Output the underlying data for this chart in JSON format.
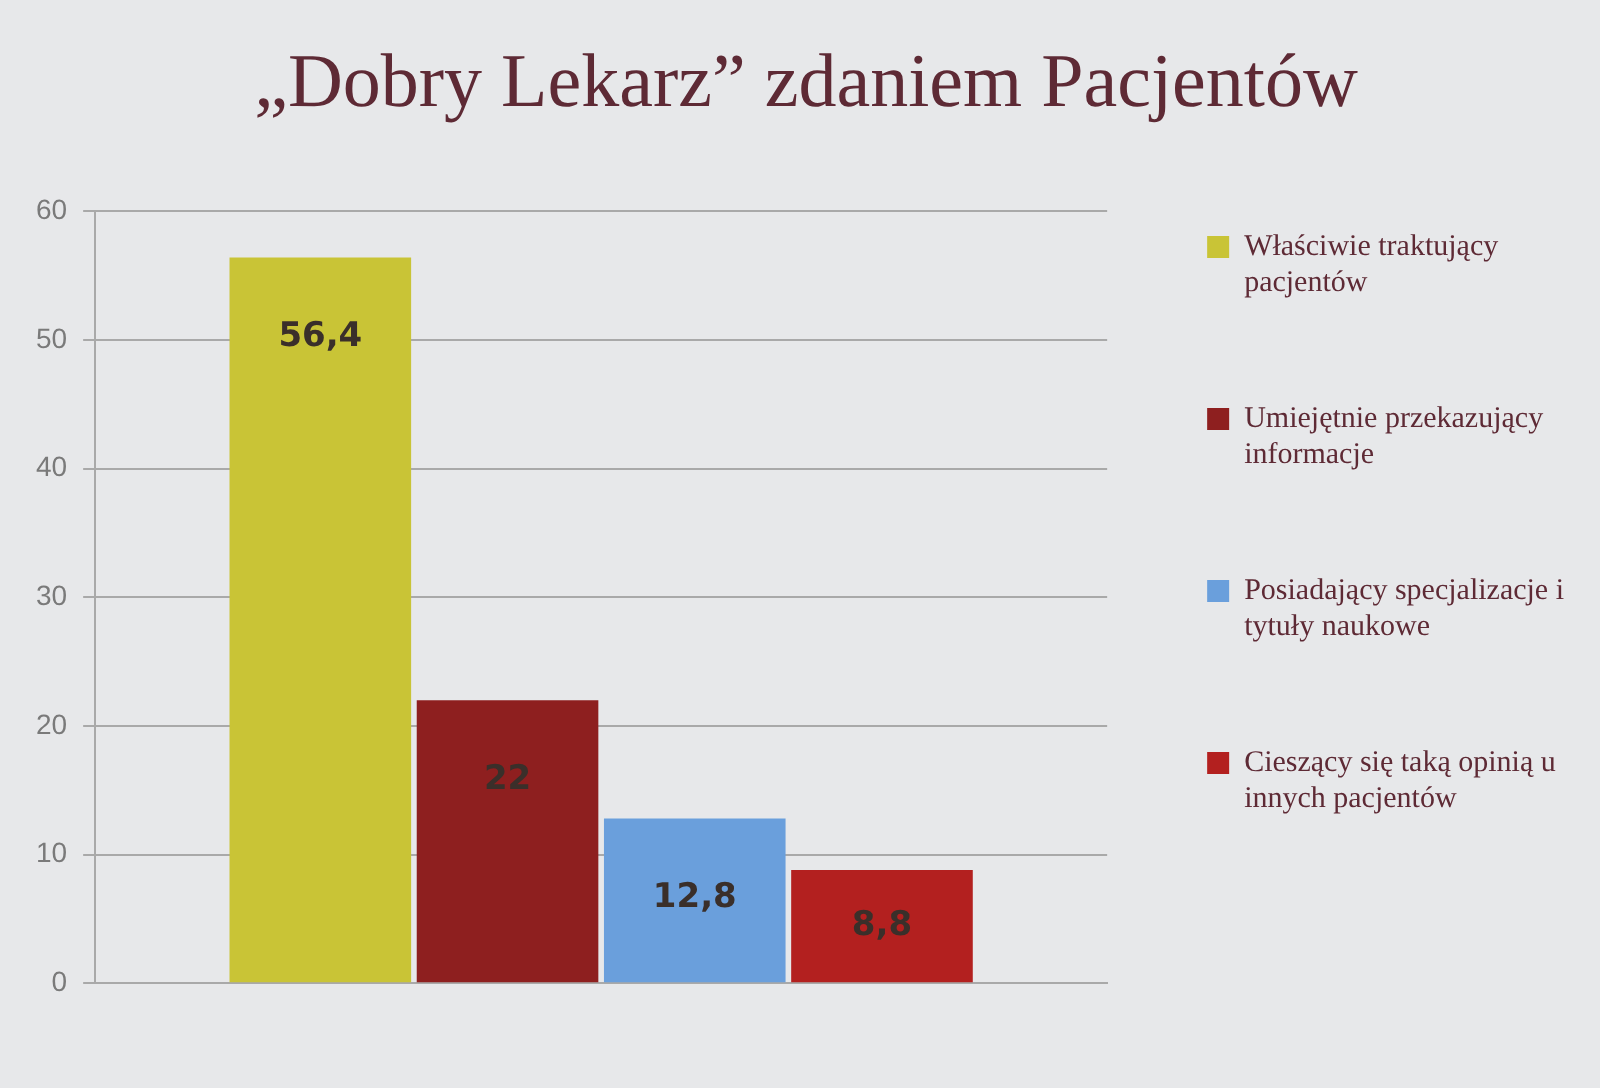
{
  "chart_data": {
    "type": "bar",
    "title": "„Dobry Lekarz” zdaniem Pacjentów",
    "categories": [
      null
    ],
    "series": [
      {
        "name": "Właściwie traktujący pacjentów",
        "color": "#c9c436",
        "values": [
          56.4
        ],
        "value_labels": [
          "56,4"
        ]
      },
      {
        "name": "Umiejętnie przekazujący informacje",
        "color": "#8e1f1f",
        "values": [
          22
        ],
        "value_labels": [
          "22"
        ]
      },
      {
        "name": "Posiadający specjalizacje i tytuły naukowe",
        "color": "#6a9fdc",
        "values": [
          12.8
        ],
        "value_labels": [
          "12,8"
        ]
      },
      {
        "name": "Cieszący się taką opinią u innych pacjentów",
        "color": "#b3201f",
        "values": [
          8.8
        ],
        "value_labels": [
          "8,8"
        ]
      }
    ],
    "ylim": [
      0,
      60
    ],
    "yticks": [
      0,
      10,
      20,
      30,
      40,
      50,
      60
    ],
    "grid": "y",
    "legend": "right"
  }
}
